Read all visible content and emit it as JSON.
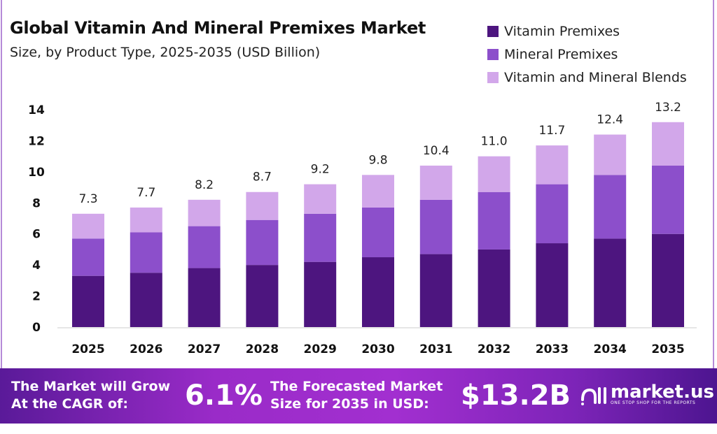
{
  "colors": {
    "vitamin": "#4d157f",
    "mineral": "#8c4fcb",
    "blend": "#d2a7ea"
  },
  "chart_data": {
    "type": "bar",
    "stacked": true,
    "title": "Global Vitamin And Mineral Premixes Market",
    "subtitle": "Size, by Product Type, 2025-2035 (USD Billion)",
    "xlabel": "",
    "ylabel": "",
    "ylim": [
      0,
      14
    ],
    "yticks": [
      "0",
      "2",
      "4",
      "6",
      "8",
      "10",
      "12",
      "14"
    ],
    "grid": false,
    "legend_position": "top-right",
    "categories": [
      "2025",
      "2026",
      "2027",
      "2028",
      "2029",
      "2030",
      "2031",
      "2032",
      "2033",
      "2034",
      "2035"
    ],
    "series": [
      {
        "name": "Vitamin Premixes",
        "values": [
          3.3,
          3.5,
          3.8,
          4.0,
          4.2,
          4.5,
          4.7,
          5.0,
          5.4,
          5.7,
          6.0
        ]
      },
      {
        "name": "Mineral Premixes",
        "values": [
          2.4,
          2.6,
          2.7,
          2.9,
          3.1,
          3.2,
          3.5,
          3.7,
          3.8,
          4.1,
          4.4
        ]
      },
      {
        "name": "Vitamin and Mineral Blends",
        "values": [
          1.6,
          1.6,
          1.7,
          1.8,
          1.9,
          2.1,
          2.2,
          2.3,
          2.5,
          2.6,
          2.8
        ]
      }
    ],
    "totals": [
      "7.3",
      "7.7",
      "8.2",
      "8.7",
      "9.2",
      "9.8",
      "10.4",
      "11.0",
      "11.7",
      "12.4",
      "13.2"
    ]
  },
  "footer": {
    "cagr_line1": "The Market will Grow",
    "cagr_line2": "At the CAGR of:",
    "cagr_value": "6.1%",
    "size_line1": "The Forecasted Market",
    "size_line2": "Size for 2035 in USD:",
    "size_value": "$13.2B",
    "brand": "market.us",
    "tagline": "ONE STOP SHOP FOR THE REPORTS"
  }
}
